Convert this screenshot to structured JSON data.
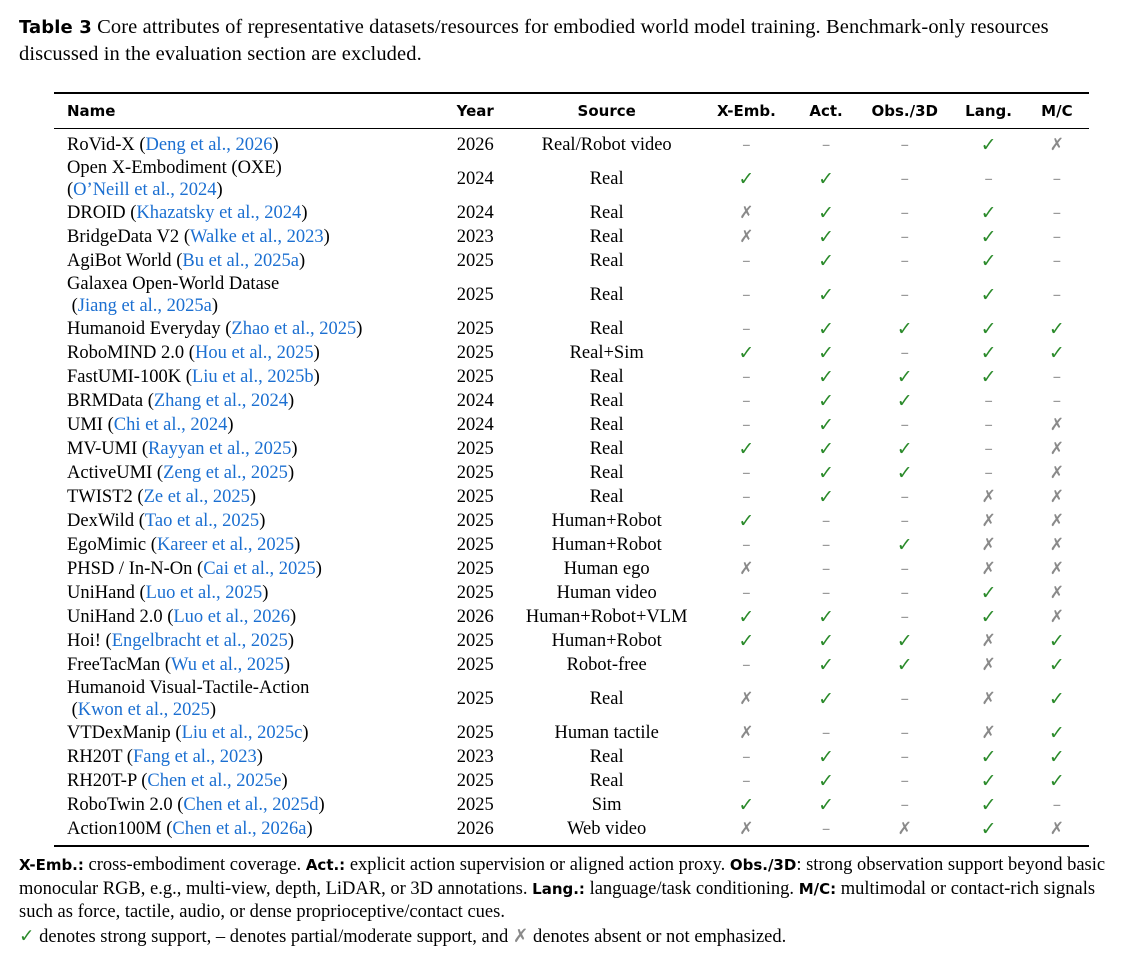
{
  "caption": {
    "label": "Table 3",
    "text": "Core attributes of representative datasets/resources for embodied world model training. Benchmark-only resources discussed in the evaluation section are excluded."
  },
  "symbols": {
    "full": "✓",
    "partial": "–",
    "none": "✗"
  },
  "colors": {
    "full": "#2a8a2a",
    "partial": "#9a9a9a",
    "none": "#8a8a8a",
    "citation": "#1b6fd1"
  },
  "columns": [
    "Name",
    "Year",
    "Source",
    "X-Emb.",
    "Act.",
    "Obs./3D",
    "Lang.",
    "M/C"
  ],
  "rows": [
    {
      "name": "RoVid-X ",
      "cite": "Deng et al., 2026",
      "year": "2026",
      "source": "Real/Robot video",
      "xemb": "partial",
      "act": "partial",
      "obs": "partial",
      "lang": "full",
      "mc": "none"
    },
    {
      "name": "Open X-Embodiment (OXE)",
      "cite": "O’Neill et al., 2024",
      "wrap": true,
      "year": "2024",
      "source": "Real",
      "xemb": "full",
      "act": "full",
      "obs": "partial",
      "lang": "partial",
      "mc": "partial"
    },
    {
      "name": "DROID ",
      "cite": "Khazatsky et al., 2024",
      "year": "2024",
      "source": "Real",
      "xemb": "none",
      "act": "full",
      "obs": "partial",
      "lang": "full",
      "mc": "partial"
    },
    {
      "name": "BridgeData V2 ",
      "cite": "Walke et al., 2023",
      "year": "2023",
      "source": "Real",
      "xemb": "none",
      "act": "full",
      "obs": "partial",
      "lang": "full",
      "mc": "partial"
    },
    {
      "name": "AgiBot World ",
      "cite": "Bu et al., 2025a",
      "year": "2025",
      "source": "Real",
      "xemb": "partial",
      "act": "full",
      "obs": "partial",
      "lang": "full",
      "mc": "partial"
    },
    {
      "name": "Galaxea Open-World Datase",
      "cite": "Jiang et al., 2025a",
      "wrap": true,
      "year": "2025",
      "source": "Real",
      "xemb": "partial",
      "act": "full",
      "obs": "partial",
      "lang": "full",
      "mc": "partial"
    },
    {
      "name": "Humanoid Everyday ",
      "cite": "Zhao et al., 2025",
      "year": "2025",
      "source": "Real",
      "xemb": "partial",
      "act": "full",
      "obs": "full",
      "lang": "full",
      "mc": "full"
    },
    {
      "name": "RoboMIND 2.0 ",
      "cite": "Hou et al., 2025",
      "year": "2025",
      "source": "Real+Sim",
      "xemb": "full",
      "act": "full",
      "obs": "partial",
      "lang": "full",
      "mc": "full"
    },
    {
      "name": "FastUMI-100K ",
      "cite": "Liu et al., 2025b",
      "year": "2025",
      "source": "Real",
      "xemb": "partial",
      "act": "full",
      "obs": "full",
      "lang": "full",
      "mc": "partial"
    },
    {
      "name": "BRMData ",
      "cite": "Zhang et al., 2024",
      "year": "2024",
      "source": "Real",
      "xemb": "partial",
      "act": "full",
      "obs": "full",
      "lang": "partial",
      "mc": "partial"
    },
    {
      "name": "UMI ",
      "cite": "Chi et al., 2024",
      "year": "2024",
      "source": "Real",
      "xemb": "partial",
      "act": "full",
      "obs": "partial",
      "lang": "partial",
      "mc": "none"
    },
    {
      "name": "MV-UMI ",
      "cite": "Rayyan et al., 2025",
      "year": "2025",
      "source": "Real",
      "xemb": "full",
      "act": "full",
      "obs": "full",
      "lang": "partial",
      "mc": "none"
    },
    {
      "name": "ActiveUMI ",
      "cite": "Zeng et al., 2025",
      "year": "2025",
      "source": "Real",
      "xemb": "partial",
      "act": "full",
      "obs": "full",
      "lang": "partial",
      "mc": "none"
    },
    {
      "name": "TWIST2 ",
      "cite": "Ze et al., 2025",
      "year": "2025",
      "source": "Real",
      "xemb": "partial",
      "act": "full",
      "obs": "partial",
      "lang": "none",
      "mc": "none"
    },
    {
      "name": "DexWild ",
      "cite": "Tao et al., 2025",
      "year": "2025",
      "source": "Human+Robot",
      "xemb": "full",
      "act": "partial",
      "obs": "partial",
      "lang": "none",
      "mc": "none"
    },
    {
      "name": "EgoMimic ",
      "cite": "Kareer et al., 2025",
      "year": "2025",
      "source": "Human+Robot",
      "xemb": "partial",
      "act": "partial",
      "obs": "full",
      "lang": "none",
      "mc": "none"
    },
    {
      "name": "PHSD / In-N-On ",
      "cite": "Cai et al., 2025",
      "year": "2025",
      "source": "Human ego",
      "xemb": "none",
      "act": "partial",
      "obs": "partial",
      "lang": "none",
      "mc": "none"
    },
    {
      "name": "UniHand ",
      "cite": "Luo et al., 2025",
      "year": "2025",
      "source": "Human video",
      "xemb": "partial",
      "act": "partial",
      "obs": "partial",
      "lang": "full",
      "mc": "none"
    },
    {
      "name": "UniHand 2.0 ",
      "cite": "Luo et al., 2026",
      "year": "2026",
      "source": "Human+Robot+VLM",
      "xemb": "full",
      "act": "full",
      "obs": "partial",
      "lang": "full",
      "mc": "none"
    },
    {
      "name": "Hoi! ",
      "cite": "Engelbracht et al., 2025",
      "year": "2025",
      "source": "Human+Robot",
      "xemb": "full",
      "act": "full",
      "obs": "full",
      "lang": "none",
      "mc": "full"
    },
    {
      "name": "FreeTacMan ",
      "cite": "Wu et al., 2025",
      "year": "2025",
      "source": "Robot-free",
      "xemb": "partial",
      "act": "full",
      "obs": "full",
      "lang": "none",
      "mc": "full"
    },
    {
      "name": "Humanoid Visual-Tactile-Action",
      "cite": "Kwon et al., 2025",
      "wrap": true,
      "year": "2025",
      "source": "Real",
      "xemb": "none",
      "act": "full",
      "obs": "partial",
      "lang": "none",
      "mc": "full"
    },
    {
      "name": "VTDexManip ",
      "cite": "Liu et al., 2025c",
      "year": "2025",
      "source": "Human tactile",
      "xemb": "none",
      "act": "partial",
      "obs": "partial",
      "lang": "none",
      "mc": "full"
    },
    {
      "name": "RH20T ",
      "cite": "Fang et al., 2023",
      "year": "2023",
      "source": "Real",
      "xemb": "partial",
      "act": "full",
      "obs": "partial",
      "lang": "full",
      "mc": "full"
    },
    {
      "name": "RH20T-P ",
      "cite": "Chen et al., 2025e",
      "year": "2025",
      "source": "Real",
      "xemb": "partial",
      "act": "full",
      "obs": "partial",
      "lang": "full",
      "mc": "full"
    },
    {
      "name": "RoboTwin 2.0 ",
      "cite": "Chen et al., 2025d",
      "year": "2025",
      "source": "Sim",
      "xemb": "full",
      "act": "full",
      "obs": "partial",
      "lang": "full",
      "mc": "partial"
    },
    {
      "name": "Action100M ",
      "cite": "Chen et al., 2026a",
      "year": "2026",
      "source": "Web video",
      "xemb": "none",
      "act": "partial",
      "obs": "none",
      "lang": "full",
      "mc": "none"
    }
  ],
  "footnote": {
    "xemb_key": "X-Emb.:",
    "xemb_text": " cross-embodiment coverage. ",
    "act_key": "Act.:",
    "act_text": " explicit action supervision or aligned action proxy. ",
    "obs_key": "Obs./3D",
    "obs_text": ": strong observation support beyond basic monocular RGB, e.g., multi-view, depth, LiDAR, or 3D annotations. ",
    "lang_key": "Lang.:",
    "lang_text": " language/task conditioning. ",
    "mc_key": "M/C:",
    "mc_text": " multimodal or contact-rich signals such as force, tactile, audio, or dense proprioceptive/contact cues.",
    "legend_full_text": " denotes strong support, ",
    "legend_partial_text": " denotes partial/moderate support, and ",
    "legend_none_text": " denotes absent or not emphasized."
  }
}
